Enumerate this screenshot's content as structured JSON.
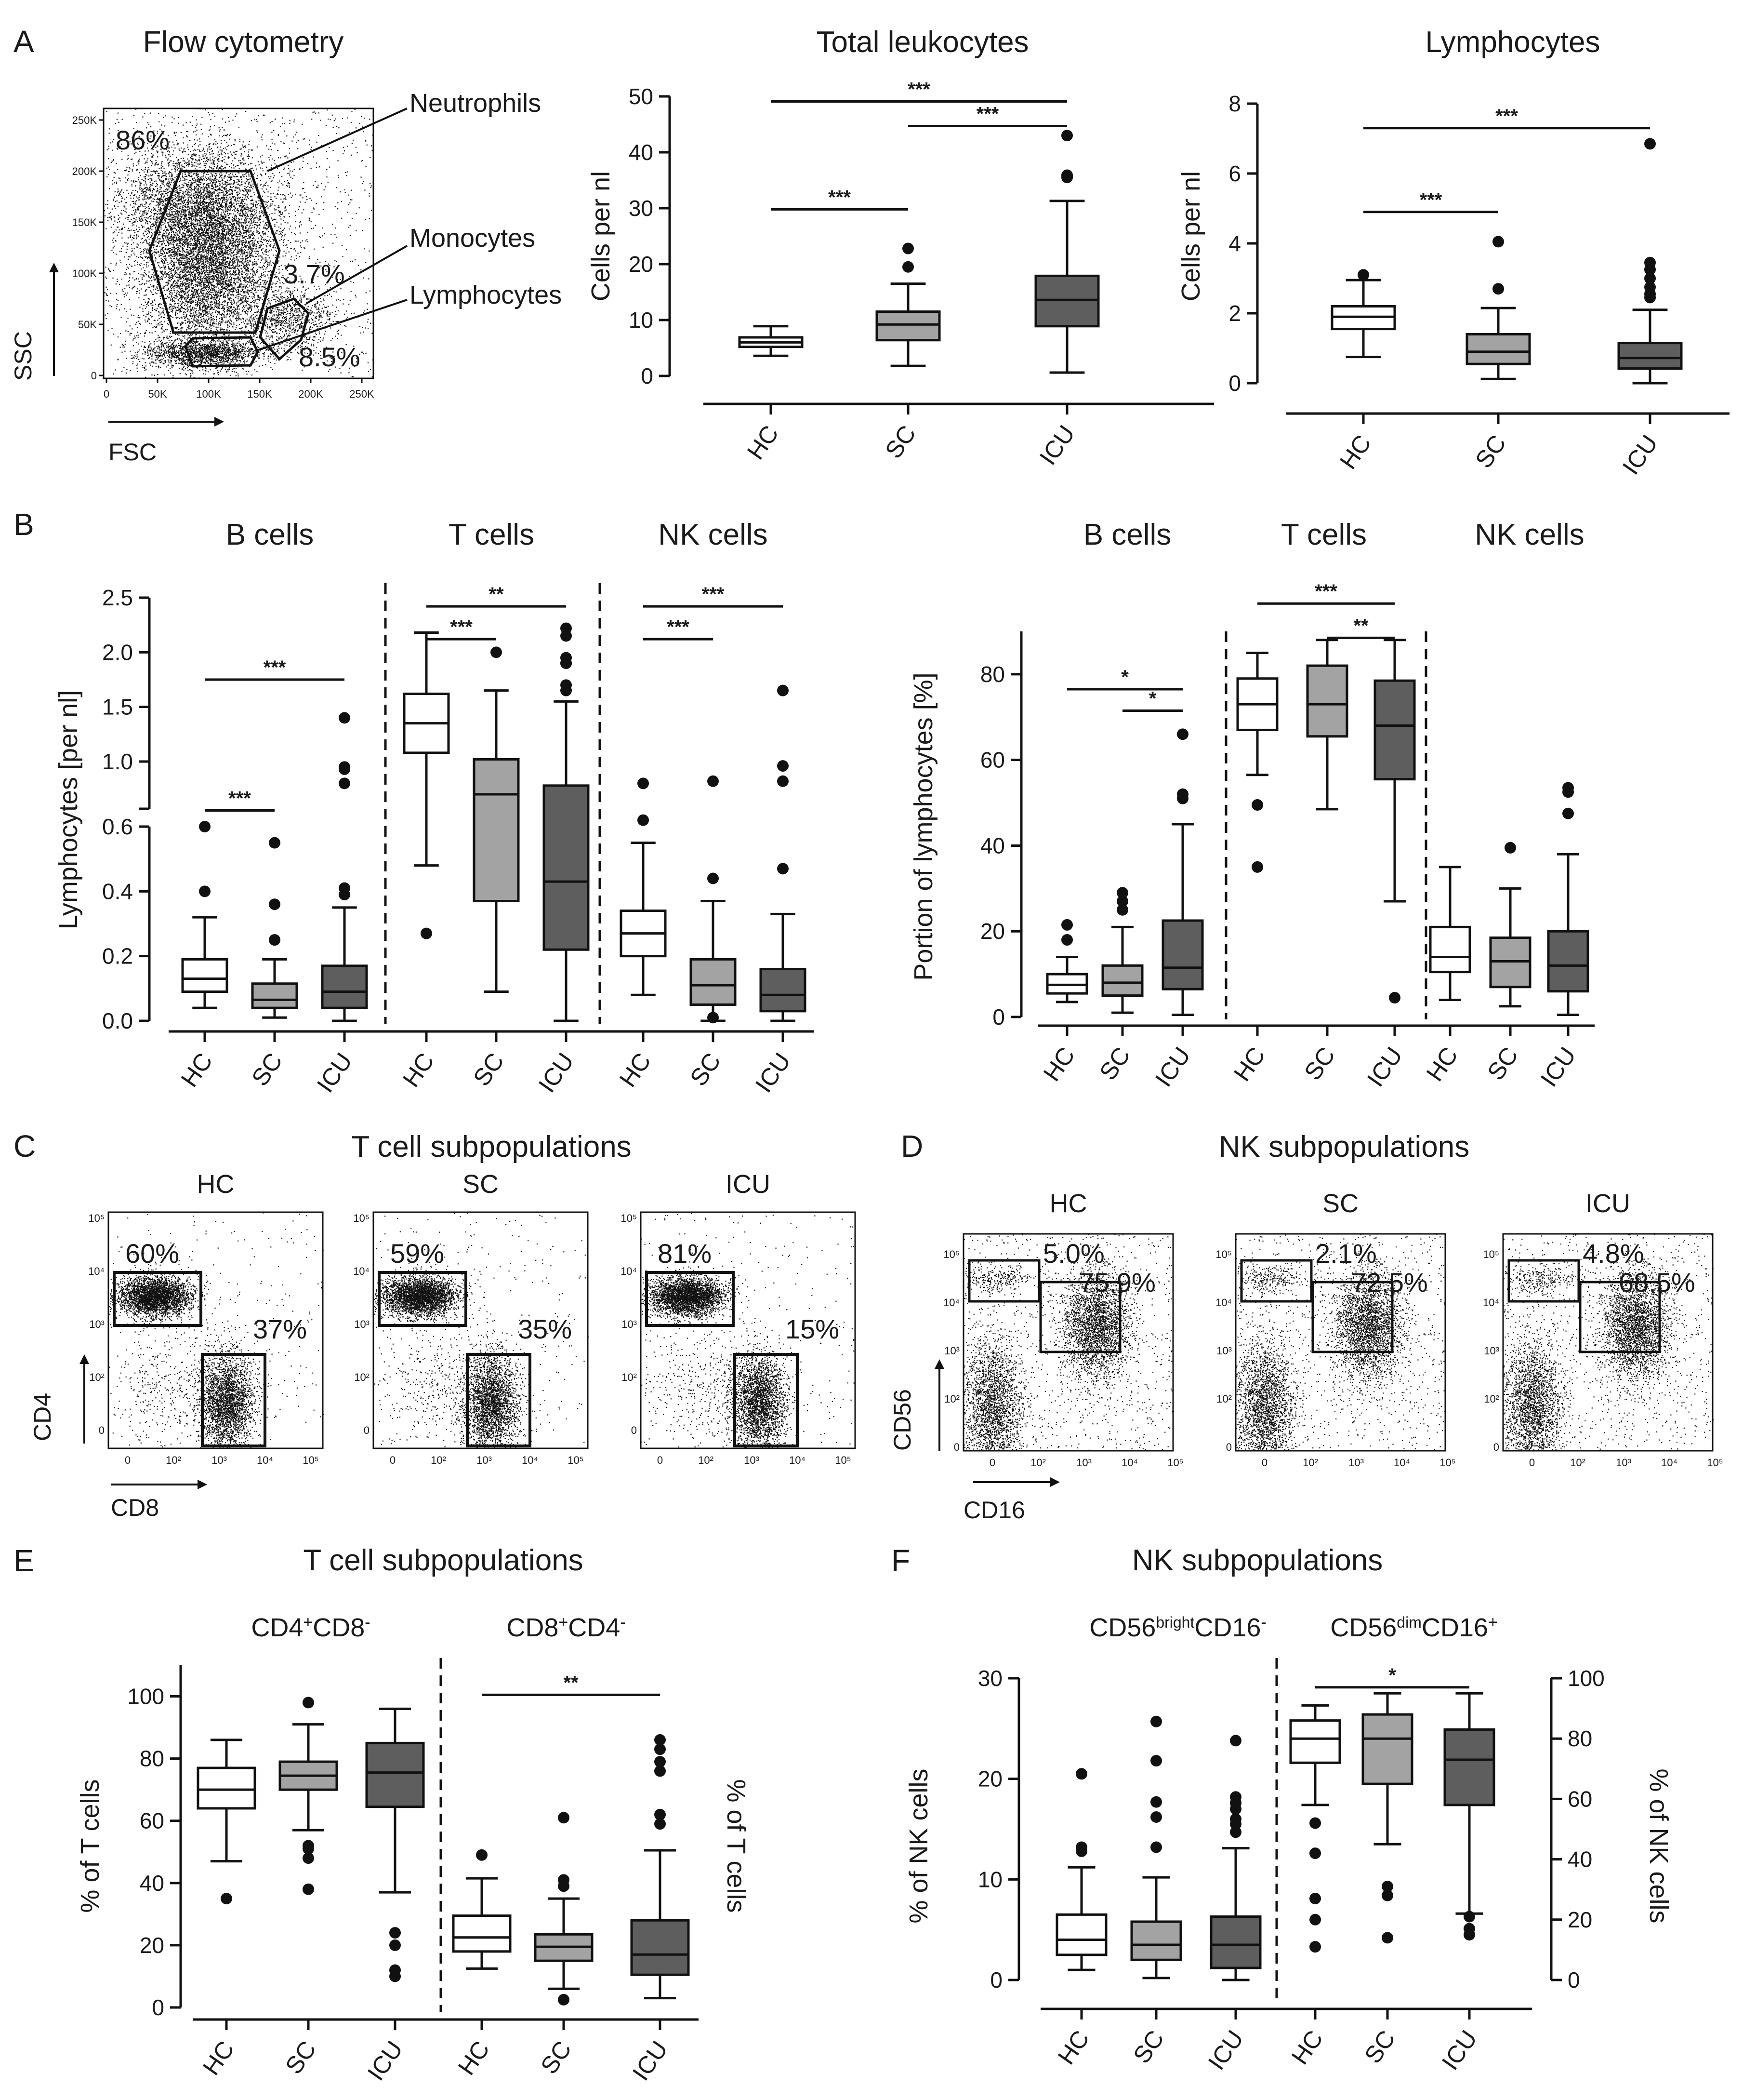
{
  "colors": {
    "HC": "#ffffff",
    "SC": "#a3a3a3",
    "ICU": "#5e5e5e",
    "stroke": "#111111"
  },
  "panel_labels": [
    "A",
    "B",
    "C",
    "D",
    "E",
    "F"
  ],
  "panelA": {
    "title": "Flow cytometry",
    "gates": {
      "neutrophils": "Neutrophils",
      "monocytes": "Monocytes",
      "lymphocytes": "Lymphocytes"
    },
    "percents": {
      "neutrophils": "86%",
      "monocytes": "3.7%",
      "lymphocytes": "8.5%"
    },
    "xaxis": "FSC",
    "yaxis": "SSC",
    "xticks": [
      "0",
      "50K",
      "100K",
      "150K",
      "200K",
      "250K"
    ],
    "yticks": [
      "0",
      "50K",
      "100K",
      "150K",
      "200K",
      "250K"
    ]
  },
  "panelB": {
    "titles": [
      "B cells",
      "T cells",
      "NK cells",
      "B cells",
      "T cells",
      "NK cells"
    ]
  },
  "panelC": {
    "title": "T cell subpopulations",
    "xaxis": "CD8",
    "yaxis": "CD4"
  },
  "panelD": {
    "title": "NK subpopulations",
    "xaxis": "CD16",
    "yaxis": "CD56"
  },
  "panelE": {
    "title": "T cell subpopulations"
  },
  "panelF": {
    "title": "NK subpopulations"
  },
  "flow_ticks": {
    "x": [
      "0",
      "10²",
      "10³",
      "10⁴",
      "10⁵"
    ],
    "y": [
      "10⁵",
      "10⁴",
      "10³",
      "10²",
      "0"
    ]
  },
  "chart_data": [
    {
      "id": "total_leukocytes",
      "type": "box",
      "title": "Total leukocytes",
      "ylabel": "Cells per nl",
      "categories": [
        "HC",
        "SC",
        "ICU"
      ],
      "ylim": [
        0,
        50
      ],
      "yticks": [
        0,
        10,
        20,
        30,
        40,
        50
      ],
      "boxes": [
        {
          "whisker_low": 3.6,
          "q1": 5.2,
          "median": 6.0,
          "q3": 6.9,
          "whisker_high": 8.9,
          "outliers": []
        },
        {
          "whisker_low": 1.8,
          "q1": 6.4,
          "median": 9.2,
          "q3": 11.5,
          "whisker_high": 16.5,
          "outliers": [
            19.5,
            22.8
          ]
        },
        {
          "whisker_low": 0.6,
          "q1": 8.9,
          "median": 13.6,
          "q3": 17.9,
          "whisker_high": 31.3,
          "outliers": [
            35.5,
            35.9,
            43.0
          ]
        }
      ],
      "significance": [
        {
          "from": 0,
          "to": 1,
          "label": "***",
          "y": 29.8
        },
        {
          "from": 1,
          "to": 2,
          "label": "***",
          "y": 44.7
        },
        {
          "from": 0,
          "to": 2,
          "label": "***",
          "y": 49.1
        }
      ]
    },
    {
      "id": "lymphocytes",
      "type": "box",
      "title": "Lymphocytes",
      "ylabel": "Cells per nl",
      "categories": [
        "HC",
        "SC",
        "ICU"
      ],
      "ylim": [
        0,
        8
      ],
      "yticks": [
        0,
        2,
        4,
        6,
        8
      ],
      "boxes": [
        {
          "whisker_low": 0.75,
          "q1": 1.55,
          "median": 1.9,
          "q3": 2.2,
          "whisker_high": 2.95,
          "outliers": [
            3.1
          ]
        },
        {
          "whisker_low": 0.12,
          "q1": 0.55,
          "median": 0.9,
          "q3": 1.4,
          "whisker_high": 2.15,
          "outliers": [
            2.7,
            4.05
          ]
        },
        {
          "whisker_low": 0.0,
          "q1": 0.42,
          "median": 0.72,
          "q3": 1.15,
          "whisker_high": 2.1,
          "outliers": [
            2.45,
            2.55,
            2.75,
            3.0,
            3.25,
            3.45,
            6.85
          ]
        }
      ],
      "significance": [
        {
          "from": 0,
          "to": 1,
          "label": "***",
          "y": 4.9
        },
        {
          "from": 0,
          "to": 2,
          "label": "***",
          "y": 7.3
        }
      ]
    },
    {
      "id": "lymphocyte_subsets_absolute",
      "type": "box",
      "ylabel": "Lymphocytes [per nl]",
      "groups": [
        "B cells",
        "T cells",
        "NK cells"
      ],
      "categories": [
        "HC",
        "SC",
        "ICU"
      ],
      "axis_break": {
        "lower": [
          0,
          0.6
        ],
        "upper": [
          0.7,
          2.5
        ]
      },
      "yticks": [
        0.0,
        0.2,
        0.4,
        0.6,
        1.0,
        1.5,
        2.0,
        2.5
      ],
      "boxes": [
        {
          "whisker_low": 0.04,
          "q1": 0.09,
          "median": 0.13,
          "q3": 0.19,
          "whisker_high": 0.32,
          "outliers": [
            0.4,
            0.6
          ]
        },
        {
          "whisker_low": 0.01,
          "q1": 0.04,
          "median": 0.065,
          "q3": 0.115,
          "whisker_high": 0.19,
          "outliers": [
            0.25,
            0.25,
            0.36,
            0.55
          ]
        },
        {
          "whisker_low": 0.0,
          "q1": 0.04,
          "median": 0.09,
          "q3": 0.17,
          "whisker_high": 0.35,
          "outliers": [
            0.39,
            0.41,
            0.8,
            0.93,
            0.95,
            1.4
          ]
        },
        {
          "whisker_low": 0.48,
          "q1": 1.08,
          "median": 1.35,
          "q3": 1.62,
          "whisker_high": 2.18,
          "outliers": [
            0.27
          ]
        },
        {
          "whisker_low": 0.09,
          "q1": 0.37,
          "median": 0.7,
          "q3": 1.02,
          "whisker_high": 1.65,
          "outliers": [
            2.0
          ]
        },
        {
          "whisker_low": 0.0,
          "q1": 0.22,
          "median": 0.43,
          "q3": 0.78,
          "whisker_high": 1.55,
          "outliers": [
            1.65,
            1.7,
            1.9,
            1.9,
            1.95,
            2.15,
            2.22
          ]
        },
        {
          "whisker_low": 0.08,
          "q1": 0.2,
          "median": 0.27,
          "q3": 0.34,
          "whisker_high": 0.55,
          "outliers": [
            0.62,
            0.8
          ]
        },
        {
          "whisker_low": 0.0,
          "q1": 0.05,
          "median": 0.11,
          "q3": 0.19,
          "whisker_high": 0.37,
          "outliers": [
            0.01,
            0.44,
            0.82
          ]
        },
        {
          "whisker_low": 0.0,
          "q1": 0.03,
          "median": 0.08,
          "q3": 0.16,
          "whisker_high": 0.33,
          "outliers": [
            0.47,
            0.82,
            0.96,
            1.65
          ]
        }
      ],
      "significance": [
        {
          "from": 0,
          "to": 1,
          "label": "***",
          "y": 0.65
        },
        {
          "from": 0,
          "to": 2,
          "label": "***",
          "y": 1.75
        },
        {
          "from": 3,
          "to": 4,
          "label": "***",
          "y": 2.12
        },
        {
          "from": 3,
          "to": 5,
          "label": "**",
          "y": 2.42
        },
        {
          "from": 6,
          "to": 7,
          "label": "***",
          "y": 2.12
        },
        {
          "from": 6,
          "to": 8,
          "label": "***",
          "y": 2.42
        }
      ]
    },
    {
      "id": "lymphocyte_subsets_percent",
      "type": "box",
      "ylabel": "Portion of lymphocytes [%]",
      "groups": [
        "B cells",
        "T cells",
        "NK cells"
      ],
      "categories": [
        "HC",
        "SC",
        "ICU"
      ],
      "ylim": [
        0,
        90
      ],
      "yticks": [
        0,
        20,
        40,
        60,
        80
      ],
      "boxes": [
        {
          "whisker_low": 3.5,
          "q1": 5.5,
          "median": 7.5,
          "q3": 10,
          "whisker_high": 14,
          "outliers": [
            18,
            21.5
          ]
        },
        {
          "whisker_low": 1,
          "q1": 5,
          "median": 8,
          "q3": 12,
          "whisker_high": 21,
          "outliers": [
            25,
            27,
            29
          ]
        },
        {
          "whisker_low": 0.5,
          "q1": 6.5,
          "median": 11.5,
          "q3": 22.5,
          "whisker_high": 45,
          "outliers": [
            51,
            52,
            66
          ]
        },
        {
          "whisker_low": 56.5,
          "q1": 67,
          "median": 73,
          "q3": 79,
          "whisker_high": 85,
          "outliers": [
            35,
            49.5
          ]
        },
        {
          "whisker_low": 48.5,
          "q1": 65.5,
          "median": 73,
          "q3": 82,
          "whisker_high": 88,
          "outliers": []
        },
        {
          "whisker_low": 27,
          "q1": 55.5,
          "median": 68,
          "q3": 78.5,
          "whisker_high": 88,
          "outliers": [
            4.5
          ]
        },
        {
          "whisker_low": 4,
          "q1": 10.5,
          "median": 14,
          "q3": 21,
          "whisker_high": 35,
          "outliers": []
        },
        {
          "whisker_low": 2.5,
          "q1": 7,
          "median": 13,
          "q3": 18.5,
          "whisker_high": 30,
          "outliers": [
            39.5
          ]
        },
        {
          "whisker_low": 0.5,
          "q1": 6,
          "median": 12,
          "q3": 20,
          "whisker_high": 38,
          "outliers": [
            47.5,
            52.5,
            53.5
          ]
        }
      ],
      "significance": [
        {
          "from": 1,
          "to": 2,
          "label": "*",
          "y": 71.5
        },
        {
          "from": 0,
          "to": 2,
          "label": "*",
          "y": 76.5
        },
        {
          "from": 4,
          "to": 5,
          "label": "**",
          "y": 88.5
        },
        {
          "from": 3,
          "to": 5,
          "label": "***",
          "y": 96.5
        }
      ]
    },
    {
      "id": "t_cell_subpopulations",
      "type": "box",
      "ylabel_left": "% of T cells",
      "ylabel_right": "% of T cells",
      "groups": [
        "CD4+CD8-",
        "CD8+CD4-"
      ],
      "categories": [
        "HC",
        "SC",
        "ICU"
      ],
      "ylim": [
        0,
        110
      ],
      "yticks": [
        0,
        20,
        40,
        60,
        80,
        100
      ],
      "boxes": [
        {
          "whisker_low": 47,
          "q1": 64,
          "median": 70,
          "q3": 77,
          "whisker_high": 86,
          "outliers": [
            35
          ]
        },
        {
          "whisker_low": 57,
          "q1": 70,
          "median": 74.5,
          "q3": 79,
          "whisker_high": 91,
          "outliers": [
            38,
            48,
            51,
            52,
            98
          ]
        },
        {
          "whisker_low": 37,
          "q1": 64.5,
          "median": 75.5,
          "q3": 85,
          "whisker_high": 96,
          "outliers": [
            10,
            12,
            20,
            24
          ]
        },
        {
          "whisker_low": 12.5,
          "q1": 18,
          "median": 22.5,
          "q3": 29.5,
          "whisker_high": 41.5,
          "outliers": [
            49
          ]
        },
        {
          "whisker_low": 6,
          "q1": 15,
          "median": 19.5,
          "q3": 23.5,
          "whisker_high": 35,
          "outliers": [
            2.5,
            39,
            41,
            61
          ]
        },
        {
          "whisker_low": 3,
          "q1": 10.5,
          "median": 17,
          "q3": 28,
          "whisker_high": 50.5,
          "outliers": [
            59,
            62,
            76,
            79,
            83,
            86
          ]
        }
      ],
      "significance": [
        {
          "from": 3,
          "to": 5,
          "label": "**",
          "y": 100.5
        }
      ]
    },
    {
      "id": "nk_subpopulations",
      "type": "box",
      "ylabel_left": "% of NK cells",
      "ylabel_right": "% of NK cells",
      "groups": [
        "CD56brightCD16-",
        "CD56dimCD16+"
      ],
      "categories": [
        "HC",
        "SC",
        "ICU"
      ],
      "left_ylim": [
        0,
        30
      ],
      "left_yticks": [
        0,
        10,
        20,
        30
      ],
      "right_ylim": [
        0,
        100
      ],
      "right_yticks": [
        0,
        20,
        40,
        60,
        80,
        100
      ],
      "boxes": [
        {
          "axis": "left",
          "whisker_low": 1,
          "q1": 2.5,
          "median": 4,
          "q3": 6.5,
          "whisker_high": 11.2,
          "outliers": [
            12.8,
            13.2,
            20.5
          ]
        },
        {
          "axis": "left",
          "whisker_low": 0.2,
          "q1": 2,
          "median": 3.5,
          "q3": 5.8,
          "whisker_high": 10.2,
          "outliers": [
            13.2,
            16.2,
            17.7,
            21.8,
            25.7
          ]
        },
        {
          "axis": "left",
          "whisker_low": 0,
          "q1": 1.2,
          "median": 3.5,
          "q3": 6.3,
          "whisker_high": 13.1,
          "outliers": [
            14.7,
            15.5,
            16,
            17,
            17.6,
            18.2,
            23.8
          ]
        },
        {
          "axis": "right",
          "whisker_low": 58,
          "q1": 72,
          "median": 80,
          "q3": 86,
          "whisker_high": 91,
          "outliers": [
            11,
            20,
            27,
            42,
            52
          ]
        },
        {
          "axis": "right",
          "whisker_low": 45,
          "q1": 65,
          "median": 80,
          "q3": 88,
          "whisker_high": 95,
          "outliers": [
            14,
            28,
            31
          ]
        },
        {
          "axis": "right",
          "whisker_low": 22,
          "q1": 58,
          "median": 73,
          "q3": 83,
          "whisker_high": 95,
          "outliers": [
            15,
            17,
            21
          ]
        }
      ],
      "significance": [
        {
          "from": 3,
          "to": 5,
          "label": "*",
          "y": 97
        }
      ]
    },
    {
      "id": "flow_t_cells",
      "type": "scatter",
      "panels": [
        {
          "label": "HC",
          "gates": [
            "60%",
            "37%"
          ]
        },
        {
          "label": "SC",
          "gates": [
            "59%",
            "35%"
          ]
        },
        {
          "label": "ICU",
          "gates": [
            "81%",
            "15%"
          ]
        }
      ]
    },
    {
      "id": "flow_nk_cells",
      "type": "scatter",
      "panels": [
        {
          "label": "HC",
          "gates": [
            "5.0%",
            "75.9%"
          ]
        },
        {
          "label": "SC",
          "gates": [
            "2.1%",
            "72.5%"
          ]
        },
        {
          "label": "ICU",
          "gates": [
            "4.8%",
            "68.5%"
          ]
        }
      ]
    }
  ]
}
